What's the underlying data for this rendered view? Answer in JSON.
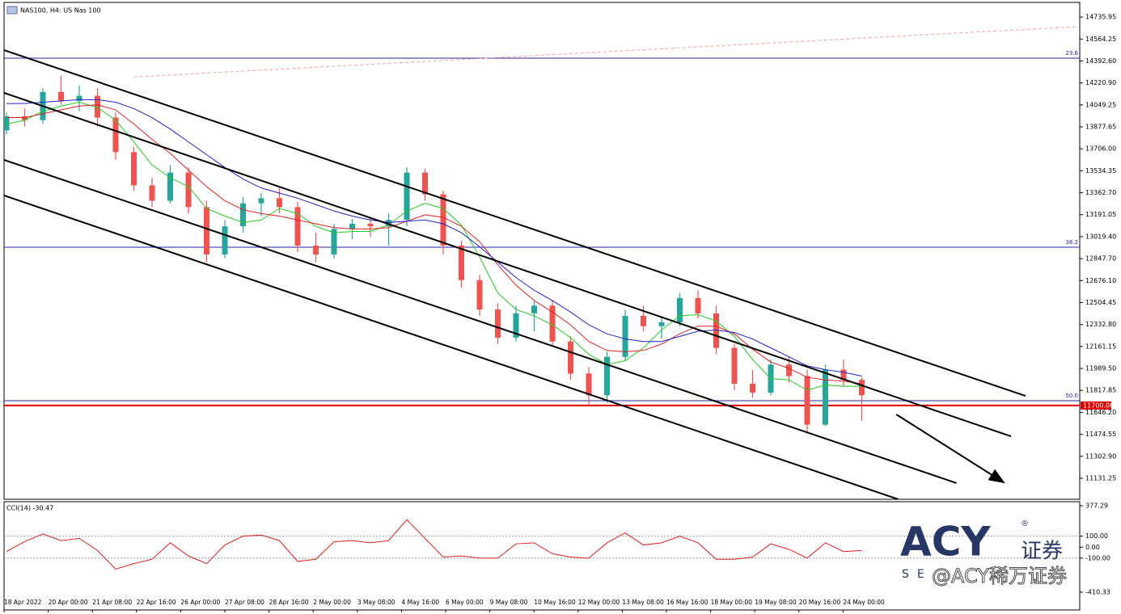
{
  "header": {
    "symbol_info": "NAS100, H4:  US Nas 100"
  },
  "logo": {
    "brand": "ACY",
    "reg": "®",
    "cn": "证券",
    "sub": "SE",
    "watermark": "@ACY稀万证券"
  },
  "chart_data": [
    {
      "type": "candlestick",
      "x_labels": [
        "18 Apr 2022",
        "20 Apr 00:00",
        "21 Apr 08:00",
        "22 Apr 16:00",
        "26 Apr 00:00",
        "27 Apr 08:00",
        "28 Apr 16:00",
        "2 May 00:00",
        "3 May 08:00",
        "4 May 16:00",
        "6 May 00:00",
        "9 May 08:00",
        "10 May 16:00",
        "12 May 00:00",
        "13 May 08:00",
        "16 May 16:00",
        "18 May 00:00",
        "19 May 08:00",
        "20 May 16:00",
        "24 May 00:00"
      ],
      "candles": {
        "open": [
          13850,
          13960,
          13930,
          14150,
          14080,
          14120,
          13950,
          13680,
          13420,
          13300,
          13520,
          13250,
          12880,
          13100,
          13280,
          13320,
          13250,
          12950,
          12880,
          13080,
          13120,
          13100,
          13150,
          13520,
          13350,
          12950,
          12680,
          12450,
          12230,
          12420,
          12480,
          12200,
          11950,
          11780,
          12080,
          12400,
          12320,
          12350,
          12540,
          12420,
          12150,
          11870,
          11800,
          12020,
          11930,
          11550,
          11980,
          11900
        ],
        "high": [
          13990,
          14020,
          14180,
          14280,
          14200,
          14180,
          13990,
          13720,
          13480,
          13580,
          13560,
          13300,
          13150,
          13330,
          13360,
          13400,
          13290,
          13050,
          13120,
          13160,
          13170,
          13200,
          13560,
          13550,
          13380,
          12990,
          12720,
          12500,
          12480,
          12520,
          12520,
          12240,
          12000,
          12120,
          12450,
          12480,
          12400,
          12580,
          12600,
          12480,
          12180,
          11980,
          12060,
          12080,
          11980,
          12020,
          12060,
          11920
        ],
        "low": [
          13820,
          13880,
          13900,
          14050,
          14000,
          13880,
          13620,
          13380,
          13250,
          13280,
          13200,
          12820,
          12850,
          13050,
          13180,
          13200,
          12900,
          12820,
          12850,
          13000,
          13020,
          12950,
          13100,
          13300,
          12880,
          12620,
          12400,
          12180,
          12200,
          12280,
          12160,
          11900,
          11700,
          11720,
          12050,
          12280,
          12220,
          12320,
          12380,
          12100,
          11820,
          11760,
          11780,
          11880,
          11480,
          11540,
          11850,
          11580
        ],
        "close": [
          13960,
          13930,
          14150,
          14080,
          14120,
          13950,
          13680,
          13420,
          13300,
          13520,
          13250,
          12880,
          13100,
          13280,
          13320,
          13250,
          12950,
          12880,
          13080,
          13120,
          13100,
          13150,
          13520,
          13350,
          12950,
          12680,
          12450,
          12230,
          12420,
          12480,
          12200,
          11950,
          11780,
          12080,
          12400,
          12320,
          12350,
          12540,
          12420,
          12150,
          11870,
          11800,
          12020,
          11930,
          11550,
          11980,
          11900,
          11780
        ]
      },
      "up_color": "#26a69a",
      "down_color": "#ef5350",
      "ma": [
        {
          "color": "#22cc22",
          "values": [
            13900,
            13930,
            14000,
            14040,
            14070,
            14030,
            13930,
            13760,
            13580,
            13480,
            13410,
            13240,
            13180,
            13130,
            13150,
            13240,
            13200,
            13100,
            13050,
            13060,
            13060,
            13110,
            13220,
            13280,
            13240,
            13110,
            12860,
            12580,
            12450,
            12400,
            12330,
            12230,
            12100,
            12020,
            12050,
            12150,
            12290,
            12400,
            12410,
            12360,
            12240,
            12060,
            11910,
            11900,
            11820,
            11860,
            11850,
            11850
          ]
        },
        {
          "color": "#e02020",
          "values": [
            13950,
            13950,
            13980,
            14010,
            14040,
            14050,
            14010,
            13900,
            13780,
            13670,
            13540,
            13410,
            13300,
            13230,
            13200,
            13180,
            13150,
            13120,
            13090,
            13080,
            13080,
            13090,
            13140,
            13190,
            13170,
            13100,
            12980,
            12800,
            12640,
            12520,
            12430,
            12330,
            12200,
            12130,
            12120,
            12130,
            12180,
            12260,
            12320,
            12320,
            12260,
            12140,
            12040,
            11990,
            11920,
            11900,
            11890,
            11870
          ]
        },
        {
          "color": "#2020d0",
          "values": [
            14060,
            14060,
            14070,
            14080,
            14090,
            14090,
            14070,
            14020,
            13950,
            13860,
            13760,
            13660,
            13560,
            13470,
            13400,
            13360,
            13320,
            13270,
            13220,
            13180,
            13150,
            13130,
            13140,
            13150,
            13120,
            13050,
            12940,
            12820,
            12700,
            12600,
            12520,
            12430,
            12330,
            12260,
            12220,
            12200,
            12200,
            12240,
            12280,
            12290,
            12270,
            12220,
            12150,
            12080,
            12010,
            11980,
            11960,
            11930
          ]
        }
      ],
      "ylim": [
        10967,
        14850
      ],
      "yticks": [
        14735.95,
        14564.25,
        {
          "value": 14392.6,
          "label": "14392.60"
        },
        {
          "value": 14220.9,
          "label": "14220.90"
        },
        14049.25,
        13877.65,
        {
          "value": 13706,
          "label": "13706.00"
        },
        13534.35,
        {
          "value": 13362.7,
          "label": "13362.70"
        },
        13191.05,
        {
          "value": 13019.4,
          "label": "13019.40"
        },
        {
          "value": 12847.7,
          "label": "12847.70"
        },
        {
          "value": 12676.1,
          "label": "12676.10"
        },
        12504.45,
        {
          "value": 12332.8,
          "label": "12332.80"
        },
        12161.15,
        {
          "value": 11989.5,
          "label": "11989.50"
        },
        11817.85,
        {
          "value": 11646.2,
          "label": "11646.20"
        },
        11474.55,
        {
          "value": 11302.9,
          "label": "11302.90"
        },
        11131.25
      ],
      "levels": [
        {
          "label": "23.6",
          "value": 14414,
          "color": "#2323b0"
        },
        {
          "label": "38.2",
          "value": 12937,
          "color": "#2323b0"
        },
        {
          "label": "50.0",
          "value": 11737,
          "color": "#2323b0"
        }
      ],
      "price_line": {
        "value": 11700,
        "label": "11700.00",
        "color": "#e00000"
      },
      "trendlines": [
        {
          "x": [
            -0.13,
            56
          ],
          "y": [
            14477,
            11775
          ],
          "color": "#000000"
        },
        {
          "x": [
            -0.13,
            55.2
          ],
          "y": [
            14143,
            11459
          ],
          "color": "#000000"
        },
        {
          "x": [
            -0.13,
            52.2
          ],
          "y": [
            13619,
            11094
          ],
          "color": "#000000"
        },
        {
          "x": [
            -0.13,
            49
          ],
          "y": [
            13341,
            10967
          ],
          "color": "#000000"
        },
        {
          "x": [
            48.9,
            54.8
          ],
          "y": [
            11630,
            11099
          ],
          "color": "#000000",
          "arrow": true
        },
        {
          "x": [
            7,
            58.8
          ],
          "y": [
            14268,
            14660
          ],
          "color": "#f0a0a0",
          "dashed": true
        }
      ]
    },
    {
      "type": "line",
      "title": "CCI(14) -30.47",
      "color": "#e02020",
      "values": [
        -40,
        50,
        120,
        60,
        80,
        -30,
        -200,
        -150,
        -110,
        40,
        -80,
        -150,
        20,
        100,
        110,
        60,
        -130,
        -110,
        50,
        60,
        40,
        60,
        250,
        80,
        -90,
        -80,
        -100,
        -100,
        30,
        40,
        -60,
        -90,
        -100,
        40,
        130,
        20,
        40,
        100,
        40,
        -110,
        -110,
        -90,
        30,
        -20,
        -100,
        40,
        -40,
        -30
      ],
      "ylim": [
        -572,
        414
      ],
      "yticks": [
        377.29,
        {
          "value": 100,
          "label": "100.00"
        },
        {
          "value": 0,
          "label": "0.00"
        },
        {
          "value": -100,
          "label": "-100.00"
        },
        -410.33
      ],
      "dotted_levels": [
        100,
        -100
      ]
    }
  ]
}
